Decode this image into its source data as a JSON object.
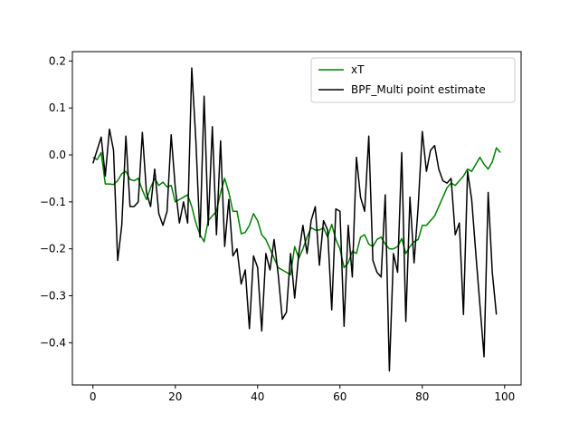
{
  "chart_data": {
    "type": "line",
    "title": "",
    "xlabel": "",
    "ylabel": "",
    "xlim": [
      -5,
      104
    ],
    "ylim": [
      -0.49,
      0.22
    ],
    "x_ticks": [
      0,
      20,
      40,
      60,
      80,
      100
    ],
    "y_ticks": [
      -0.4,
      -0.3,
      -0.2,
      -0.1,
      0.0,
      0.1,
      0.2
    ],
    "x_tick_labels": [
      "0",
      "20",
      "40",
      "60",
      "80",
      "100"
    ],
    "y_tick_labels": [
      "−0.4",
      "−0.3",
      "−0.2",
      "−0.1",
      "0.0",
      "0.1",
      "0.2"
    ],
    "grid": false,
    "legend_position": "upper right",
    "x": [
      0,
      1,
      2,
      3,
      4,
      5,
      6,
      7,
      8,
      9,
      10,
      11,
      12,
      13,
      14,
      15,
      16,
      17,
      18,
      19,
      20,
      21,
      22,
      23,
      24,
      25,
      26,
      27,
      28,
      29,
      30,
      31,
      32,
      33,
      34,
      35,
      36,
      37,
      38,
      39,
      40,
      41,
      42,
      43,
      44,
      45,
      46,
      47,
      48,
      49,
      50,
      51,
      52,
      53,
      54,
      55,
      56,
      57,
      58,
      59,
      60,
      61,
      62,
      63,
      64,
      65,
      66,
      67,
      68,
      69,
      70,
      71,
      72,
      73,
      74,
      75,
      76,
      77,
      78,
      79,
      80,
      81,
      82,
      83,
      84,
      85,
      86,
      87,
      88,
      89,
      90,
      91,
      92,
      93,
      94,
      95,
      96,
      97,
      98,
      99
    ],
    "series": [
      {
        "name": "xT",
        "color": "#008000",
        "values": [
          -0.005,
          -0.01,
          0.005,
          -0.062,
          -0.062,
          -0.063,
          -0.055,
          -0.04,
          -0.035,
          -0.052,
          -0.055,
          -0.05,
          -0.075,
          -0.095,
          -0.07,
          -0.05,
          -0.065,
          -0.058,
          -0.068,
          -0.065,
          -0.1,
          -0.095,
          -0.09,
          -0.085,
          -0.11,
          -0.145,
          -0.17,
          -0.185,
          -0.14,
          -0.13,
          -0.12,
          -0.08,
          -0.05,
          -0.08,
          -0.12,
          -0.12,
          -0.168,
          -0.165,
          -0.15,
          -0.125,
          -0.14,
          -0.17,
          -0.18,
          -0.2,
          -0.22,
          -0.24,
          -0.245,
          -0.25,
          -0.255,
          -0.195,
          -0.22,
          -0.2,
          -0.175,
          -0.155,
          -0.16,
          -0.16,
          -0.155,
          -0.175,
          -0.148,
          -0.18,
          -0.2,
          -0.24,
          -0.23,
          -0.205,
          -0.21,
          -0.175,
          -0.17,
          -0.19,
          -0.195,
          -0.18,
          -0.175,
          -0.19,
          -0.2,
          -0.2,
          -0.195,
          -0.178,
          -0.21,
          -0.195,
          -0.185,
          -0.18,
          -0.15,
          -0.15,
          -0.14,
          -0.13,
          -0.11,
          -0.09,
          -0.07,
          -0.06,
          -0.065,
          -0.055,
          -0.045,
          -0.03,
          -0.035,
          -0.02,
          -0.005,
          -0.02,
          -0.03,
          -0.015,
          0.015,
          0.005
        ]
      },
      {
        "name": "BPF_Multi point estimate",
        "color": "#000000",
        "values": [
          -0.018,
          0.01,
          0.038,
          -0.045,
          0.055,
          0.01,
          -0.225,
          -0.15,
          0.04,
          -0.11,
          -0.11,
          -0.1,
          0.048,
          -0.08,
          -0.11,
          -0.03,
          -0.125,
          -0.15,
          -0.12,
          0.043,
          -0.07,
          -0.145,
          -0.1,
          -0.145,
          0.185,
          0.03,
          -0.175,
          0.125,
          -0.15,
          0.06,
          -0.17,
          0.03,
          -0.195,
          -0.095,
          -0.215,
          -0.2,
          -0.275,
          -0.245,
          -0.37,
          -0.215,
          -0.24,
          -0.375,
          -0.21,
          -0.245,
          -0.18,
          -0.255,
          -0.35,
          -0.335,
          -0.21,
          -0.305,
          -0.21,
          -0.15,
          -0.21,
          -0.14,
          -0.11,
          -0.235,
          -0.14,
          -0.16,
          -0.33,
          -0.115,
          -0.12,
          -0.365,
          -0.15,
          -0.26,
          -0.005,
          -0.09,
          -0.12,
          0.04,
          -0.225,
          -0.25,
          -0.26,
          -0.085,
          -0.46,
          -0.21,
          -0.25,
          0.005,
          -0.355,
          -0.09,
          -0.23,
          -0.11,
          0.05,
          -0.035,
          0.01,
          0.02,
          -0.03,
          -0.055,
          -0.06,
          -0.05,
          -0.17,
          -0.145,
          -0.34,
          -0.035,
          -0.095,
          -0.21,
          -0.32,
          -0.43,
          -0.08,
          -0.25,
          -0.34,
          null
        ]
      }
    ]
  }
}
